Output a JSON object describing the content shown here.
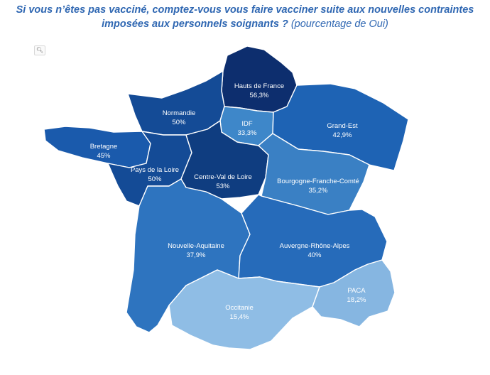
{
  "title": {
    "main": "Si vous n’êtes pas vacciné, comptez-vous vous faire vacciner suite aux nouvelles contraintes",
    "line2": "imposées aux personnels soignants ?",
    "suffix": "(pourcentage de Oui)"
  },
  "zoom_icon": "magnifier-icon",
  "regions": [
    {
      "id": "hauts-de-france",
      "name": "Hauts de France",
      "value_label": "56,3%",
      "value": 56.3,
      "color": "#0d2e6e"
    },
    {
      "id": "normandie",
      "name": "Normandie",
      "value_label": "50%",
      "value": 50,
      "color": "#144b96"
    },
    {
      "id": "idf",
      "name": "IDF",
      "value_label": "33,3%",
      "value": 33.3,
      "color": "#3e87c9"
    },
    {
      "id": "grand-est",
      "name": "Grand-Est",
      "value_label": "42,9%",
      "value": 42.9,
      "color": "#1e63b4"
    },
    {
      "id": "bretagne",
      "name": "Bretagne",
      "value_label": "45%",
      "value": 45,
      "color": "#1a5aac"
    },
    {
      "id": "pays-de-la-loire",
      "name": "Pays de la Loire",
      "value_label": "50%",
      "value": 50,
      "color": "#144b96"
    },
    {
      "id": "centre-val-de-loire",
      "name": "Centre-Val de Loire",
      "value_label": "53%",
      "value": 53,
      "color": "#0f3d80"
    },
    {
      "id": "bourgogne-franche-comte",
      "name": "Bourgogne-Franche-Comté",
      "value_label": "35,2%",
      "value": 35.2,
      "color": "#3a80c4"
    },
    {
      "id": "nouvelle-aquitaine",
      "name": "Nouvelle-Aquitaine",
      "value_label": "37,9%",
      "value": 37.9,
      "color": "#2e74bf"
    },
    {
      "id": "auvergne-rhone-alpes",
      "name": "Auvergne-Rhône-Alpes",
      "value_label": "40%",
      "value": 40,
      "color": "#266bba"
    },
    {
      "id": "occitanie",
      "name": "Occitanie",
      "value_label": "15,4%",
      "value": 15.4,
      "color": "#8fbde5"
    },
    {
      "id": "paca",
      "name": "PACA",
      "value_label": "18,2%",
      "value": 18.2,
      "color": "#86b6e1"
    }
  ]
}
